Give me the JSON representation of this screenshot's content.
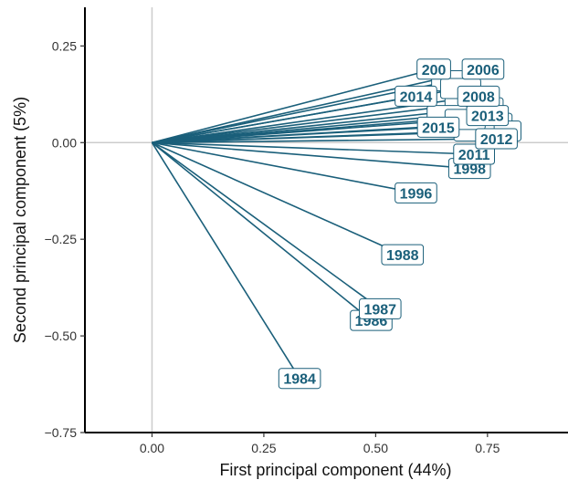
{
  "chart_data": {
    "type": "scatter",
    "subtype": "pca-loadings-biplot",
    "title": "",
    "xlabel": "First principal component (44%)",
    "ylabel": "Second principal component (5%)",
    "xlim": [
      -0.15,
      0.93
    ],
    "ylim": [
      -0.75,
      0.35
    ],
    "xticks": [
      0.0,
      0.25,
      0.5,
      0.75
    ],
    "xtick_labels": [
      "0.00",
      "0.25",
      "0.50",
      "0.75"
    ],
    "yticks": [
      -0.75,
      -0.5,
      -0.25,
      0.0,
      0.25
    ],
    "ytick_labels": [
      "−0.75",
      "−0.50",
      "−0.25",
      "0.00",
      "0.25"
    ],
    "reference_lines": {
      "x": 0,
      "y": 0
    },
    "grid": false,
    "legend": "none",
    "colors": {
      "vector": "#1a5f7a",
      "label": "#1a5f7a",
      "reference": "#cccccc",
      "axis": "#000000"
    },
    "vectors": [
      {
        "label": "1984",
        "x": 0.33,
        "y": -0.61
      },
      {
        "label": "1986",
        "x": 0.49,
        "y": -0.46
      },
      {
        "label": "1987",
        "x": 0.51,
        "y": -0.43
      },
      {
        "label": "1988",
        "x": 0.56,
        "y": -0.29
      },
      {
        "label": "1996",
        "x": 0.59,
        "y": -0.13
      },
      {
        "label": "1998",
        "x": 0.71,
        "y": -0.067
      },
      {
        "label": "2011",
        "x": 0.72,
        "y": -0.03
      },
      {
        "label": "2012",
        "x": 0.77,
        "y": 0.01
      },
      {
        "label": "2015",
        "x": 0.64,
        "y": 0.04
      },
      {
        "label": "2013",
        "x": 0.75,
        "y": 0.07
      },
      {
        "label": "2014",
        "x": 0.59,
        "y": 0.12
      },
      {
        "label": "2008",
        "x": 0.73,
        "y": 0.12
      },
      {
        "label": "2006",
        "x": 0.74,
        "y": 0.19
      },
      {
        "label": "200",
        "x": 0.63,
        "y": 0.19
      },
      {
        "label": "",
        "x": 0.76,
        "y": 0.05
      },
      {
        "label": "",
        "x": 0.78,
        "y": 0.03
      },
      {
        "label": "",
        "x": 0.74,
        "y": 0.09
      },
      {
        "label": "",
        "x": 0.7,
        "y": 0.1
      },
      {
        "label": "",
        "x": 0.67,
        "y": 0.16
      },
      {
        "label": "",
        "x": 0.69,
        "y": 0.14
      },
      {
        "label": "",
        "x": 0.66,
        "y": 0.07
      },
      {
        "label": "",
        "x": 0.72,
        "y": 0.03
      },
      {
        "label": "",
        "x": 0.7,
        "y": 0.06
      }
    ]
  }
}
